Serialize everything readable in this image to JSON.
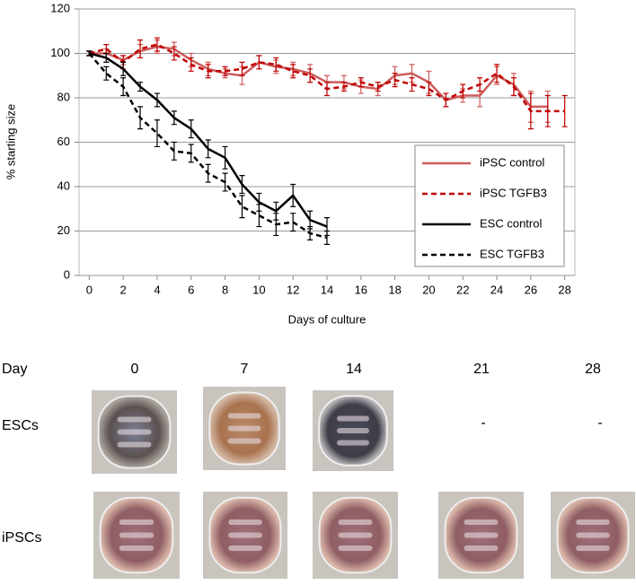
{
  "chart_data": {
    "type": "line",
    "x_label": "Days of culture",
    "y_label": "% starting size",
    "x": [
      0,
      1,
      2,
      3,
      4,
      5,
      6,
      7,
      8,
      9,
      10,
      11,
      12,
      13,
      14,
      15,
      16,
      17,
      18,
      19,
      20,
      21,
      22,
      23,
      24,
      25,
      26,
      27,
      28
    ],
    "xlim": [
      -0.6,
      28.6
    ],
    "xticks": [
      0,
      2,
      4,
      6,
      8,
      10,
      12,
      14,
      16,
      18,
      20,
      22,
      24,
      26,
      28
    ],
    "ylim": [
      0,
      120
    ],
    "yticks": [
      0,
      20,
      40,
      60,
      80,
      100,
      120
    ],
    "grid": true,
    "legend": "lower right",
    "series": [
      {
        "name": "iPSC control",
        "color": "#cd5c5c",
        "dash": false,
        "values": [
          100,
          100,
          97,
          101,
          103,
          102,
          97,
          93,
          91,
          90,
          96,
          94,
          93,
          91,
          87,
          87,
          85,
          84,
          90,
          91,
          87,
          79,
          81,
          81,
          90,
          86,
          76,
          76,
          null
        ],
        "errors": [
          1,
          2,
          2,
          3,
          3,
          3,
          3,
          3,
          2,
          4,
          3,
          3,
          3,
          4,
          3,
          3,
          3,
          3,
          4,
          4,
          5,
          3,
          3,
          5,
          4,
          5,
          7,
          7,
          null
        ]
      },
      {
        "name": "iPSC TGFB3",
        "color": "#c00000",
        "dash": true,
        "values": [
          100,
          102,
          96,
          102,
          104,
          100,
          95,
          92,
          92,
          93,
          96,
          95,
          92,
          90,
          84,
          85,
          87,
          85,
          88,
          86,
          84,
          79,
          83,
          86,
          91,
          85,
          74,
          74,
          74
        ],
        "errors": [
          1,
          2,
          3,
          4,
          3,
          3,
          3,
          3,
          2,
          3,
          3,
          3,
          3,
          3,
          3,
          2,
          2,
          2,
          3,
          3,
          3,
          3,
          3,
          3,
          4,
          4,
          8,
          7,
          7
        ]
      },
      {
        "name": "ESC control",
        "color": "#000000",
        "dash": false,
        "values": [
          100,
          98,
          93,
          85,
          79,
          71,
          66,
          57,
          53,
          41,
          33,
          29,
          36,
          25,
          22,
          null,
          null,
          null,
          null,
          null,
          null,
          null,
          null,
          null,
          null,
          null,
          null,
          null,
          null
        ],
        "errors": [
          1,
          2,
          3,
          2,
          3,
          3,
          4,
          4,
          5,
          4,
          4,
          4,
          5,
          4,
          4,
          null,
          null,
          null,
          null,
          null,
          null,
          null,
          null,
          null,
          null,
          null,
          null,
          null,
          null
        ]
      },
      {
        "name": "ESC TGFB3",
        "color": "#000000",
        "dash": true,
        "values": [
          100,
          91,
          85,
          71,
          64,
          56,
          55,
          46,
          42,
          31,
          27,
          23,
          24,
          19,
          17,
          null,
          null,
          null,
          null,
          null,
          null,
          null,
          null,
          null,
          null,
          null,
          null,
          null,
          null
        ],
        "errors": [
          1,
          3,
          4,
          5,
          6,
          4,
          4,
          4,
          4,
          5,
          5,
          5,
          4,
          3,
          3,
          null,
          null,
          null,
          null,
          null,
          null,
          null,
          null,
          null,
          null,
          null,
          null,
          null,
          null
        ]
      }
    ]
  },
  "photo_panel": {
    "day_label": "Day",
    "days": [
      "0",
      "7",
      "14",
      "21",
      "28"
    ],
    "rows": [
      {
        "label": "ESCs",
        "missing": [
          "-",
          "-"
        ]
      },
      {
        "label": "iPSCs"
      }
    ]
  }
}
